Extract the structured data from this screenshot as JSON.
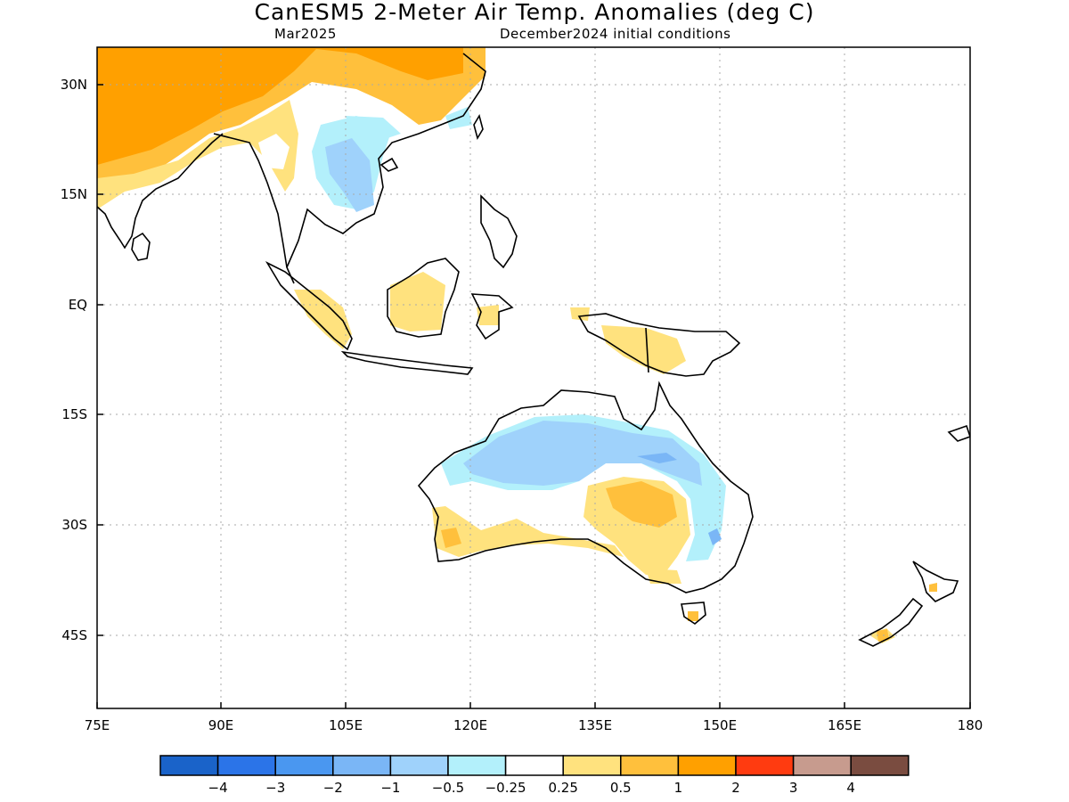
{
  "header": {
    "title": "CanESM5 2-Meter Air Temp. Anomalies (deg C)",
    "valid_month": "Mar2025",
    "initial_conditions": "December2024 initial conditions"
  },
  "map": {
    "lon_ticks": [
      "75E",
      "90E",
      "105E",
      "120E",
      "135E",
      "150E",
      "165E",
      "180"
    ],
    "lat_ticks": [
      "30N",
      "15N",
      "EQ",
      "15S",
      "30S",
      "45S"
    ]
  },
  "legend": {
    "colors": [
      "#1a63c9",
      "#2b74e8",
      "#4a97f0",
      "#7ab6f6",
      "#9fd2fb",
      "#b3f0fb",
      "#ffffff",
      "#ffe27e",
      "#ffc03c",
      "#ffa000",
      "#ff3b10",
      "#c79b8e",
      "#7a4c40"
    ],
    "labels": [
      "−4",
      "−3",
      "−2",
      "−1",
      "−0.5",
      "−0.25",
      "0.25",
      "0.5",
      "1",
      "2",
      "3",
      "4"
    ]
  }
}
